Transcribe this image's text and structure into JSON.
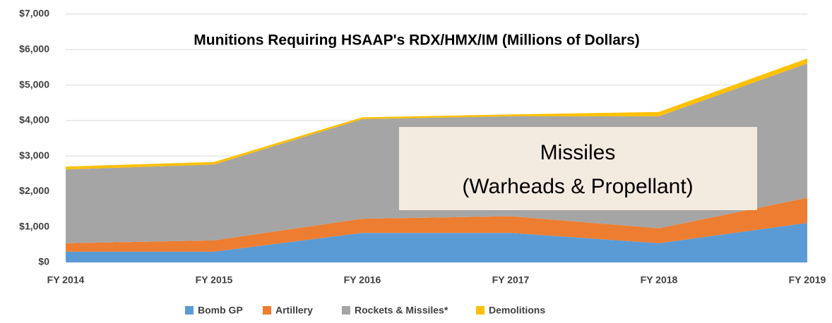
{
  "chart_data": {
    "type": "stacked_area",
    "title": "Munitions  Requiring HSAAP's RDX/HMX/IM (Millions of Dollars)",
    "annotation": [
      "Missiles",
      "(Warheads & Propellant)"
    ],
    "categories": [
      "FY 2014",
      "FY 2015",
      "FY 2016",
      "FY 2017",
      "FY 2018",
      "FY 2019"
    ],
    "series": [
      {
        "name": "Bomb GP",
        "color": "#5b9bd5",
        "values": [
          300,
          300,
          830,
          830,
          540,
          1110
        ]
      },
      {
        "name": "Artillery",
        "color": "#ed7d31",
        "values": [
          240,
          320,
          400,
          470,
          420,
          710
        ]
      },
      {
        "name": "Rockets & Missiles*",
        "color": "#a5a5a5",
        "values": [
          2080,
          2140,
          2810,
          2820,
          3160,
          3790
        ]
      },
      {
        "name": "Demolitions",
        "color": "#ffc000",
        "values": [
          80,
          70,
          50,
          50,
          120,
          140
        ]
      }
    ],
    "ylim": [
      0,
      7000
    ],
    "yticks": [
      {
        "value": 0,
        "label": "$0"
      },
      {
        "value": 1000,
        "label": "$1,000"
      },
      {
        "value": 2000,
        "label": "$2,000"
      },
      {
        "value": 3000,
        "label": "$3,000"
      },
      {
        "value": 4000,
        "label": "$4,000"
      },
      {
        "value": 5000,
        "label": "$5,000"
      },
      {
        "value": 6000,
        "label": "$6,000"
      },
      {
        "value": 7000,
        "label": "$7,000"
      }
    ],
    "grid": true,
    "legend": "bottom"
  }
}
